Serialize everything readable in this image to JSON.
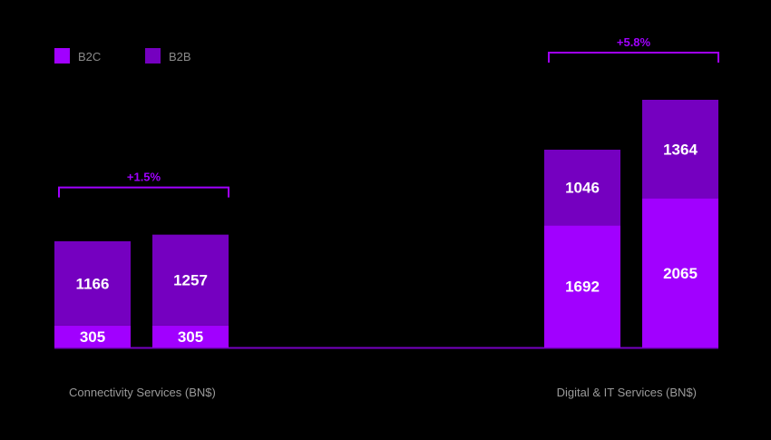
{
  "chart_data": {
    "type": "bar",
    "stacked": true,
    "title": "",
    "legend": {
      "placement": "top-left",
      "items": [
        {
          "name": "B2C",
          "color": "#a100ff"
        },
        {
          "name": "B2B",
          "color": "#7500c0"
        }
      ]
    },
    "series": [
      {
        "name": "B2C",
        "color": "#a100ff"
      },
      {
        "name": "B2B",
        "color": "#7500c0"
      }
    ],
    "groups": [
      {
        "label": "Connectivity Services (BN$)",
        "growth": "+1.5%",
        "bars": [
          {
            "B2C": 305,
            "B2B": 1166
          },
          {
            "B2C": 305,
            "B2B": 1257
          }
        ]
      },
      {
        "label": "Digital & IT Services (BN$)",
        "growth": "+5.8%",
        "bars": [
          {
            "B2C": 1692,
            "B2B": 1046
          },
          {
            "B2C": 2065,
            "B2B": 1364
          }
        ]
      }
    ],
    "ylim": [
      0,
      3429
    ],
    "grid": false,
    "baseline_color": "#7500c0"
  }
}
